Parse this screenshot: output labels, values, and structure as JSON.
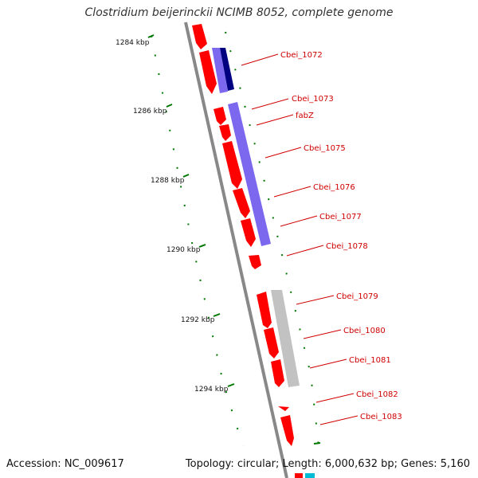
{
  "title": "Clostridium beijerinckii NCIMB 8052, complete genome",
  "footer": {
    "accession": "Accession: NC_009617",
    "summary": "Topology: circular; Length: 6,000,632 bp; Genes: 5,160"
  },
  "scale_labels": [
    "1284 kbp",
    "1286 kbp",
    "1288 kbp",
    "1290 kbp",
    "1292 kbp",
    "1294 kbp"
  ],
  "gene_labels": [
    "Cbei_1072",
    "Cbei_1073",
    "fabZ",
    "Cbei_1075",
    "Cbei_1076",
    "Cbei_1077",
    "Cbei_1078",
    "Cbei_1079",
    "Cbei_1080",
    "Cbei_1081",
    "Cbei_1082",
    "Cbei_1083"
  ],
  "colors": {
    "cds": "#ff0000",
    "cog_purple": "#7b68ee",
    "cog_navy": "#000080",
    "cog_gray": "#bbbbbb",
    "backbone": "#888888",
    "tick": "#007700",
    "label": "#d00000"
  }
}
